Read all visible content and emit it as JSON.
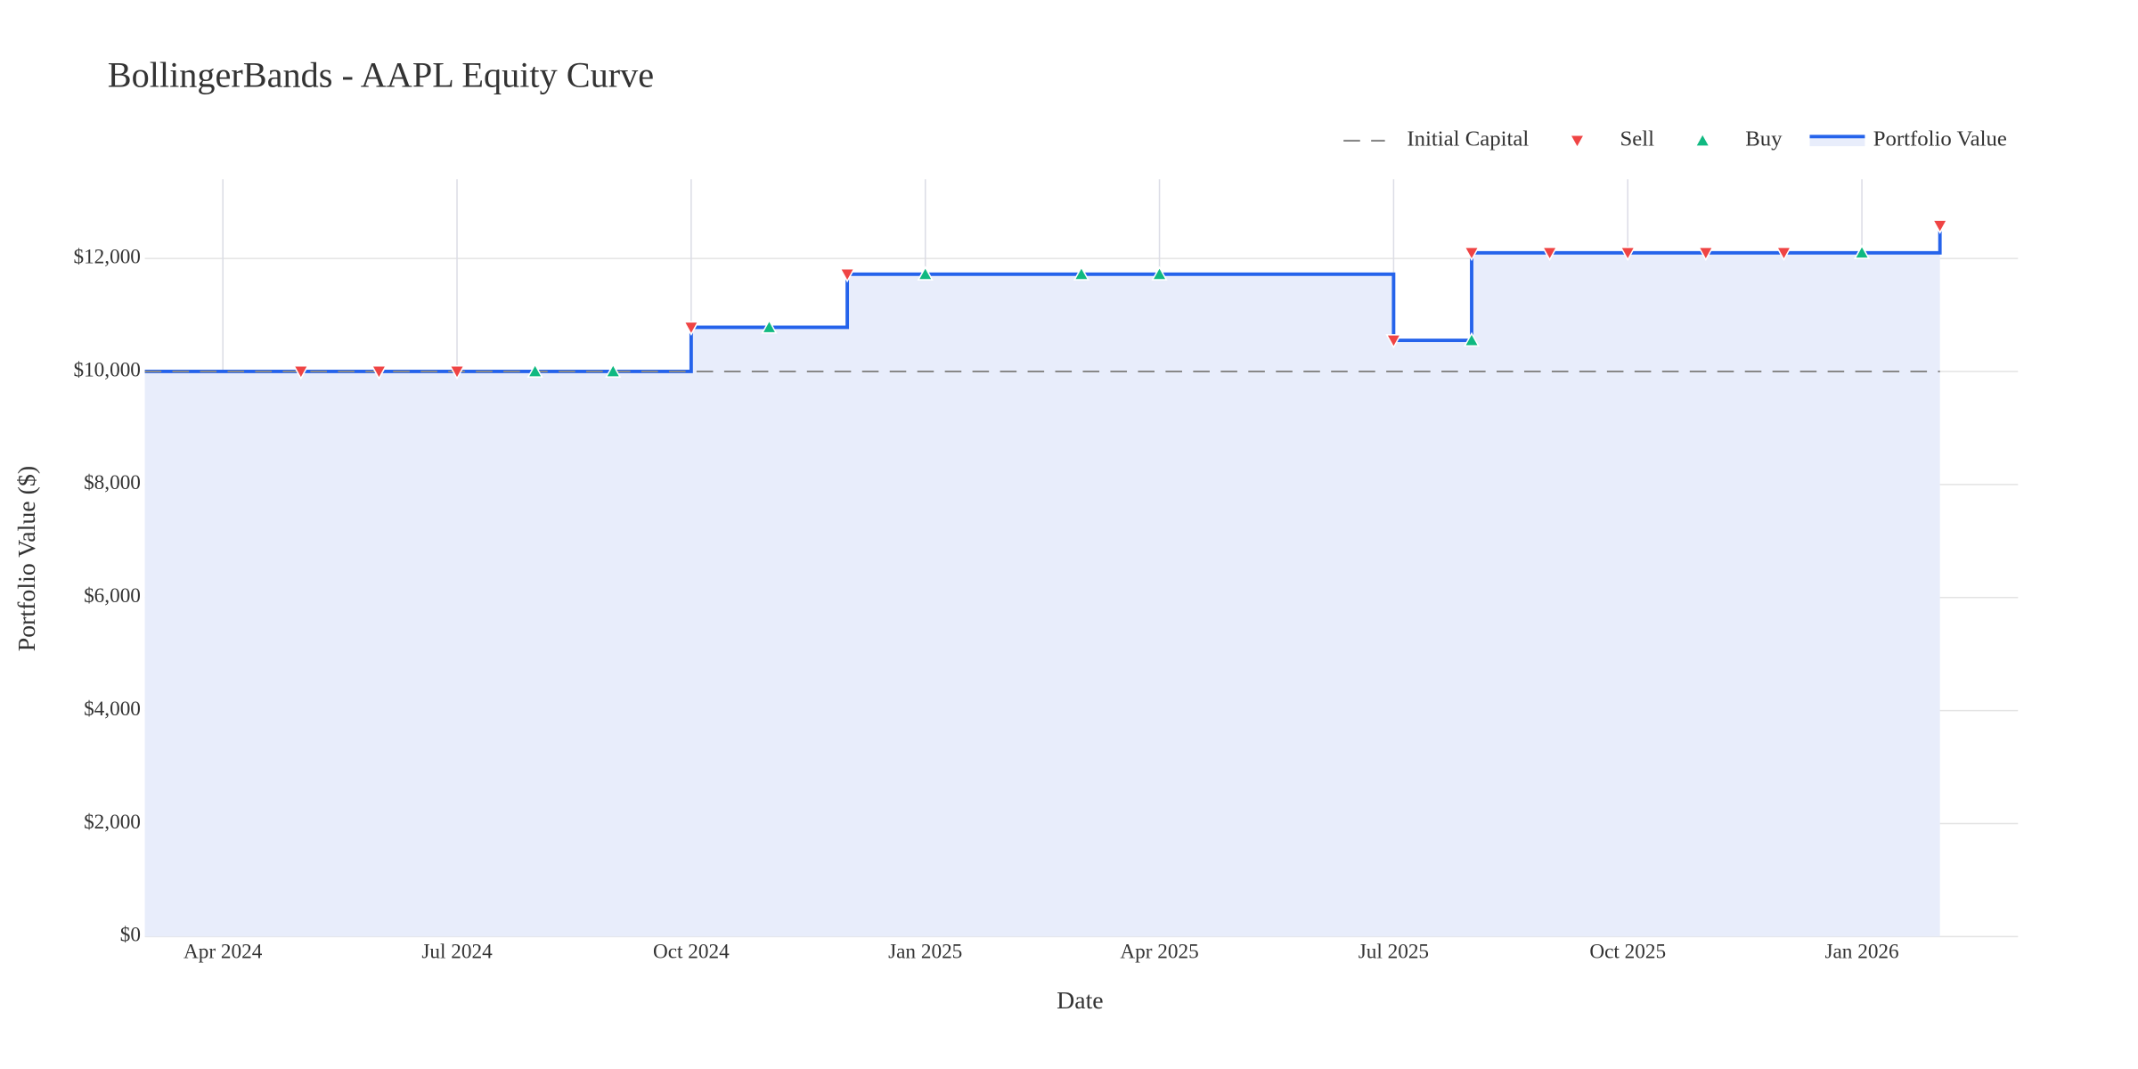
{
  "chart_data": {
    "type": "line",
    "title": "BollingerBands - AAPL Equity Curve",
    "x_label": "Date",
    "y_label": "Portfolio Value ($)",
    "xlim": [
      "2024-03",
      "2026-03"
    ],
    "xticks": [
      {
        "value": "2024-04",
        "label": "Apr 2024"
      },
      {
        "value": "2024-07",
        "label": "Jul 2024"
      },
      {
        "value": "2024-10",
        "label": "Oct 2024"
      },
      {
        "value": "2025-01",
        "label": "Jan 2025"
      },
      {
        "value": "2025-04",
        "label": "Apr 2025"
      },
      {
        "value": "2025-07",
        "label": "Jul 2025"
      },
      {
        "value": "2025-10",
        "label": "Oct 2025"
      },
      {
        "value": "2026-01",
        "label": "Jan 2026"
      }
    ],
    "ylim": [
      0,
      13400
    ],
    "yticks": [
      {
        "value": 0,
        "label": "$0"
      },
      {
        "value": 2000,
        "label": "$2,000"
      },
      {
        "value": 4000,
        "label": "$4,000"
      },
      {
        "value": 6000,
        "label": "$6,000"
      },
      {
        "value": 8000,
        "label": "$8,000"
      },
      {
        "value": 10000,
        "label": "$10,000"
      },
      {
        "value": 12000,
        "label": "$12,000"
      }
    ],
    "grid": true,
    "legend": "top right",
    "series": [
      {
        "name": "Initial Capital",
        "mode": "dash",
        "color": "#888888",
        "x": [
          "2024-03",
          "2026-02"
        ],
        "values": [
          10000,
          10000
        ]
      },
      {
        "name": "Sell",
        "mode": "triangle-down",
        "color": "#ef4444",
        "x": [
          "2024-05",
          "2024-06",
          "2024-06",
          "2024-07",
          "2024-10",
          "2024-10",
          "2024-12",
          "2025-07",
          "2025-08",
          "2025-09",
          "2025-09",
          "2025-10",
          "2025-11",
          "2025-12",
          "2026-02",
          "2026-02"
        ],
        "values": [
          10000,
          10000,
          10000,
          10000,
          10780,
          10780,
          11720,
          10550,
          12100,
          12100,
          12100,
          12100,
          12100,
          12100,
          12580,
          12580
        ]
      },
      {
        "name": "Buy",
        "mode": "triangle-up",
        "color": "#10b981",
        "x": [
          "2024-08",
          "2024-09",
          "2024-11",
          "2025-01",
          "2025-01",
          "2025-03",
          "2025-04",
          "2025-08",
          "2026-01",
          "2026-01"
        ],
        "values": [
          10000,
          10000,
          10780,
          11720,
          11720,
          11720,
          11720,
          10550,
          12100,
          12100
        ]
      },
      {
        "name": "Portfolio Value",
        "mode": "step-area",
        "color": "#2563eb",
        "fill": "#e8edfb",
        "x": [
          "2024-03",
          "2024-10",
          "2024-12",
          "2025-07",
          "2025-08",
          "2026-02"
        ],
        "values": [
          10000,
          10780,
          11720,
          10550,
          12100,
          12580
        ]
      }
    ]
  }
}
